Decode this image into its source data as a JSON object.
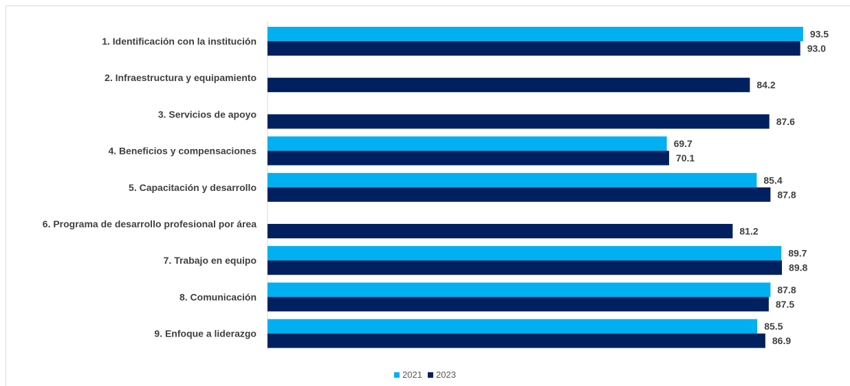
{
  "chart_data": {
    "type": "bar",
    "orientation": "horizontal",
    "title": "",
    "xlabel": "",
    "ylabel": "",
    "xlim": [
      0,
      100
    ],
    "grid": false,
    "legend_position": "bottom",
    "categories": [
      "1. Identificación con la institución",
      "2. Infraestructura y equipamiento",
      "3. Servicios de apoyo",
      "4. Beneficios y compensaciones",
      "5. Capacitación y desarrollo",
      "6. Programa de desarrollo profesional por área",
      "7. Trabajo en equipo",
      "8. Comunicación",
      "9. Enfoque a liderazgo"
    ],
    "series": [
      {
        "name": "2021",
        "color": "#00b0f0",
        "values": [
          93.5,
          null,
          null,
          69.7,
          85.4,
          null,
          89.7,
          87.8,
          85.5
        ],
        "labels": [
          "93.5",
          "",
          "",
          "69.7",
          "85.4",
          "",
          "89.7",
          "87.8",
          "85.5"
        ]
      },
      {
        "name": "2023",
        "color": "#002060",
        "values": [
          93.0,
          84.2,
          87.6,
          70.1,
          87.8,
          81.2,
          89.8,
          87.5,
          86.9
        ],
        "labels": [
          "93.0",
          "84.2",
          "87.6",
          "70.1",
          "87.8",
          "81.2",
          "89.8",
          "87.5",
          "86.9"
        ]
      }
    ]
  },
  "colors": {
    "axis_line": "#d9d9d9",
    "category_text": "#404040",
    "value_text": "#404040"
  }
}
